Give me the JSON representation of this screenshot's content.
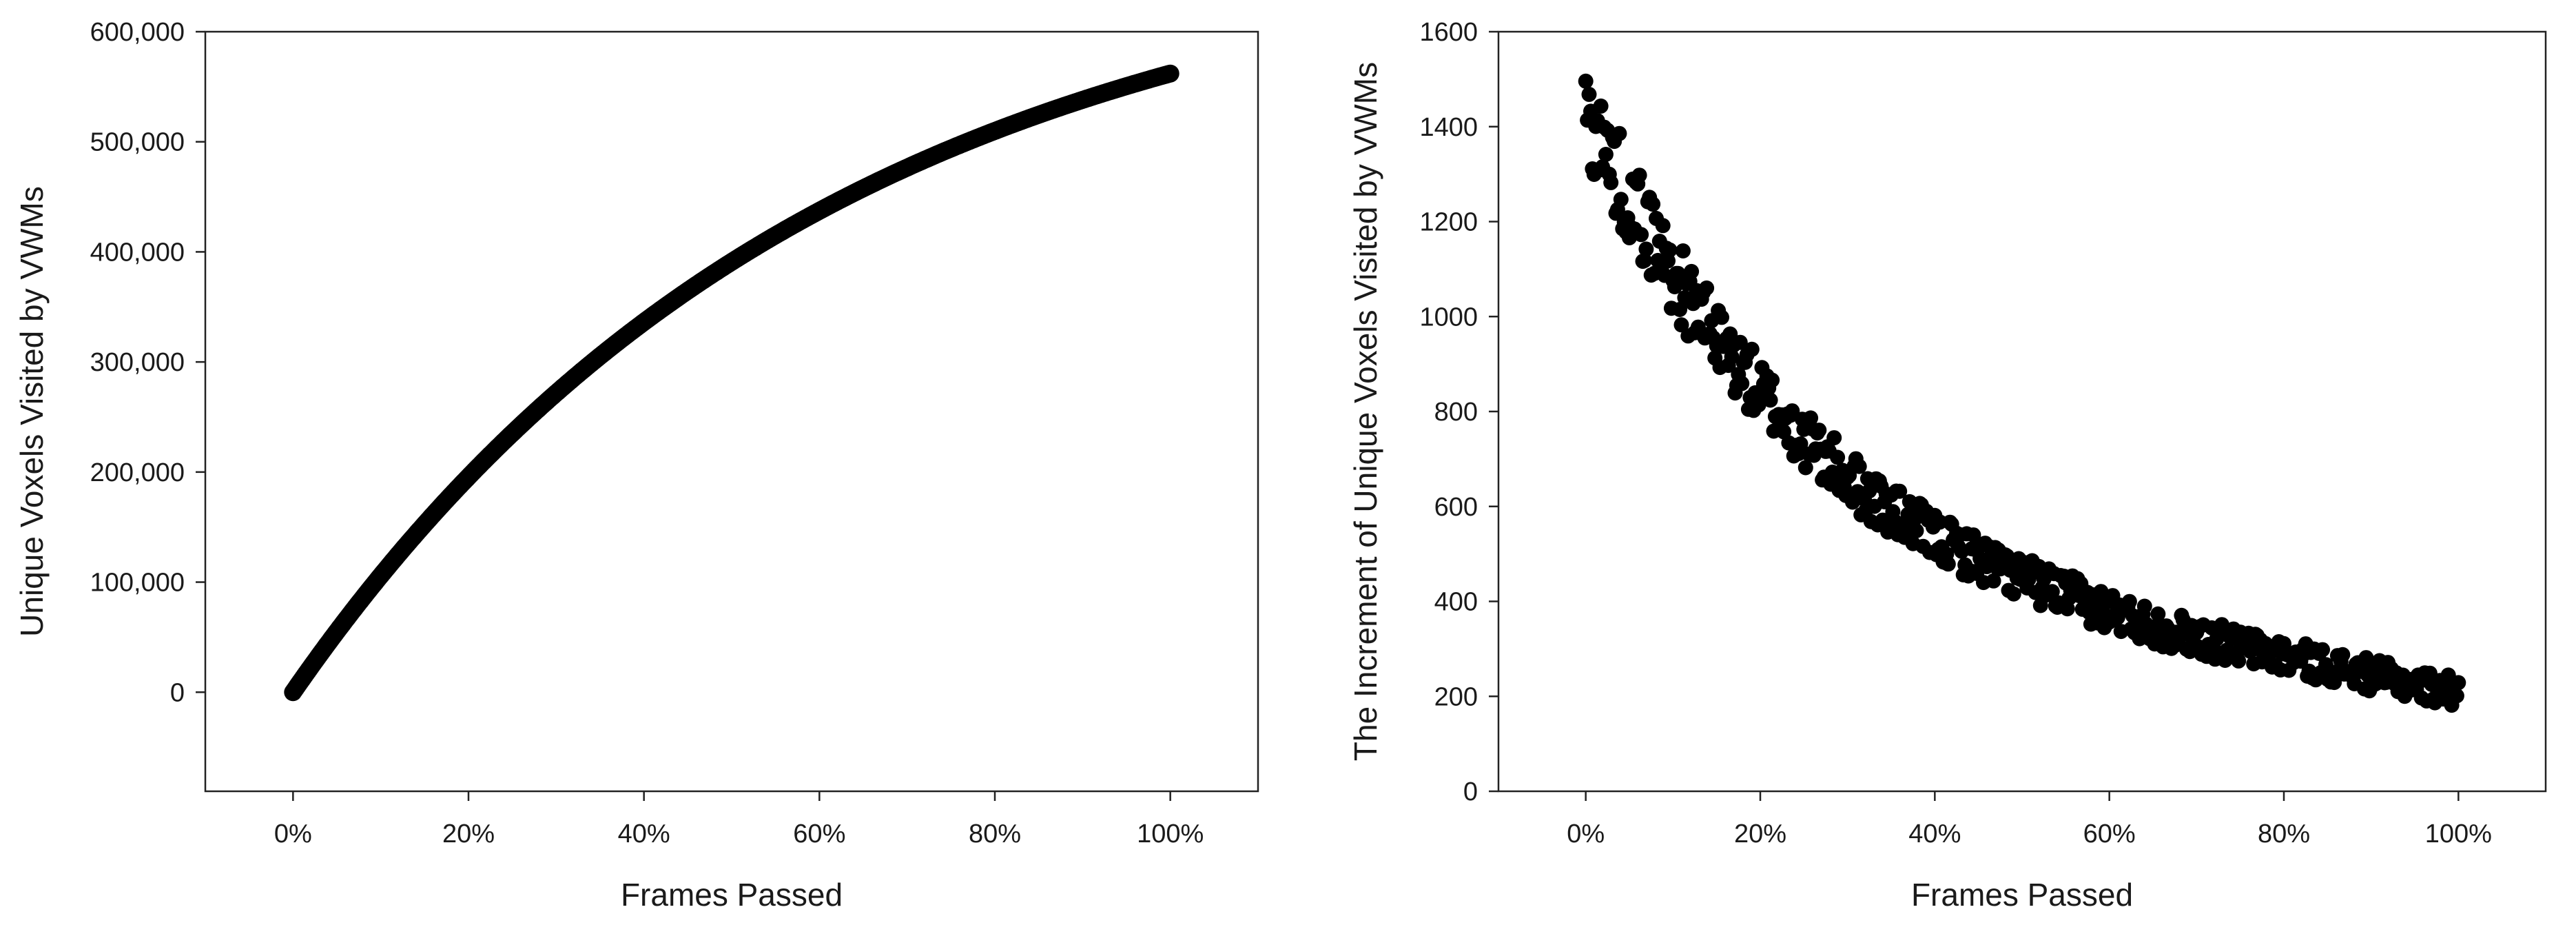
{
  "chart_data": [
    {
      "type": "scatter",
      "xlabel": "Frames Passed",
      "ylabel": "Unique Voxels Visited by VWMs",
      "xlim": [
        -10,
        110
      ],
      "ylim": [
        -90000,
        600000
      ],
      "xticks": [
        0,
        20,
        40,
        60,
        80,
        100
      ],
      "xtick_labels": [
        "0%",
        "20%",
        "40%",
        "60%",
        "80%",
        "100%"
      ],
      "yticks": [
        0,
        100000,
        200000,
        300000,
        400000,
        500000,
        600000
      ],
      "ytick_labels": [
        "0",
        "100,000",
        "200,000",
        "300,000",
        "400,000",
        "500,000",
        "600,000"
      ],
      "marker_color": "#000000",
      "grid": false,
      "series": [
        {
          "x": [
            0,
            2,
            4,
            6,
            8,
            10,
            12,
            15,
            18,
            20,
            25,
            30,
            35,
            40,
            45,
            50,
            55,
            60,
            65,
            70,
            75,
            80,
            85,
            90,
            95,
            100
          ],
          "y": [
            0,
            28000,
            55000,
            81000,
            106000,
            130000,
            154000,
            188000,
            219000,
            239000,
            285000,
            326000,
            362000,
            395000,
            424000,
            451000,
            475000,
            496000,
            515000,
            532000,
            547000,
            510000,
            525000,
            538000,
            550000,
            562000
          ]
        }
      ]
    },
    {
      "type": "scatter",
      "xlabel": "Frames Passed",
      "ylabel": "The Increment of Unique Voxels Visited by VWMs",
      "xlim": [
        -10,
        110
      ],
      "ylim": [
        0,
        1600
      ],
      "xticks": [
        0,
        20,
        40,
        60,
        80,
        100
      ],
      "xtick_labels": [
        "0%",
        "20%",
        "40%",
        "60%",
        "80%",
        "100%"
      ],
      "yticks": [
        0,
        200,
        400,
        600,
        800,
        1000,
        1200,
        1400,
        1600
      ],
      "ytick_labels": [
        "0",
        "200",
        "400",
        "600",
        "800",
        "1000",
        "1200",
        "1400",
        "1600"
      ],
      "marker_color": "#000000",
      "grid": false,
      "series": [
        {
          "x": [
            0,
            5,
            10,
            15,
            20,
            25,
            30,
            35,
            40,
            45,
            50,
            55,
            60,
            65,
            70,
            75,
            80,
            85,
            90,
            95,
            100
          ],
          "y": [
            1430,
            1250,
            1090,
            950,
            840,
            740,
            660,
            590,
            535,
            490,
            450,
            415,
            380,
            350,
            325,
            305,
            285,
            265,
            245,
            225,
            210
          ]
        }
      ]
    }
  ]
}
